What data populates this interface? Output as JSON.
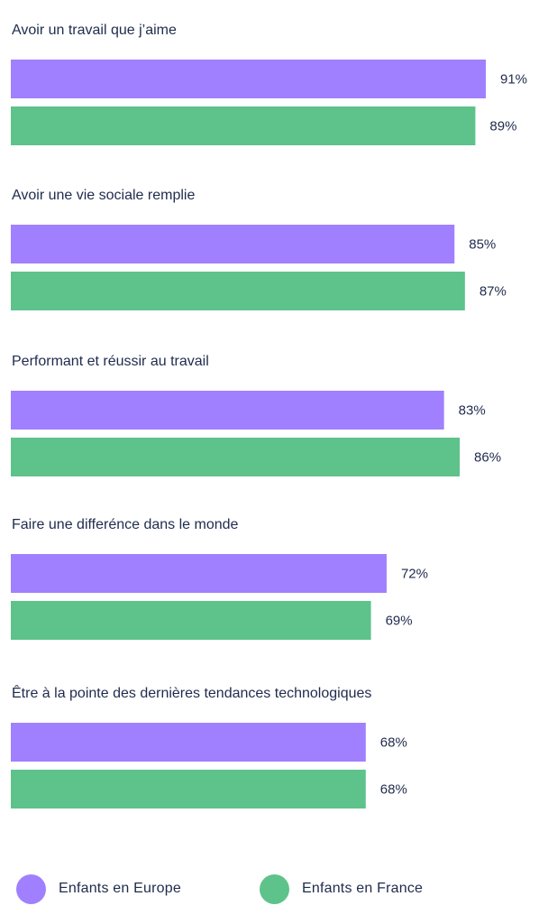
{
  "chart_data": {
    "type": "bar",
    "orientation": "horizontal",
    "categories": [
      "Avoir un travail que j’aime",
      "Avoir une vie sociale remplie",
      "Performant et réussir au travail",
      "Faire une differénce dans le monde",
      "Être à la pointe des dernières tendances technologiques"
    ],
    "series": [
      {
        "name": "Enfants en Europe",
        "color": "#a080fe",
        "values": [
          91,
          85,
          83,
          72,
          68
        ],
        "labels": [
          "91%",
          "85%",
          "83%",
          "72%",
          "68%"
        ]
      },
      {
        "name": "Enfants en France",
        "color": "#5ec28b",
        "values": [
          89,
          87,
          86,
          69,
          68
        ],
        "labels": [
          "89%",
          "87%",
          "86%",
          "69%",
          "68%"
        ]
      }
    ],
    "unit": "%",
    "grid": false,
    "legend_position": "bottom"
  }
}
